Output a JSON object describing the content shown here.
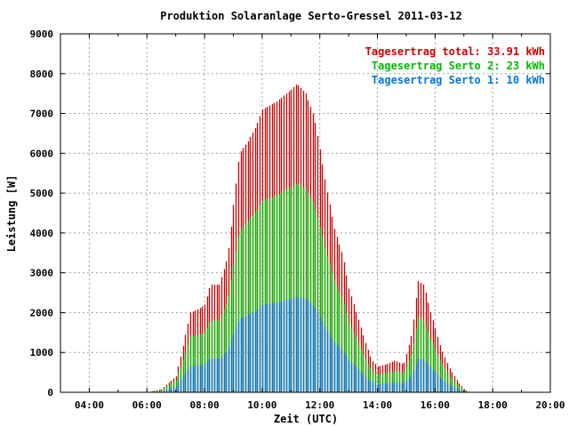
{
  "chart_data": {
    "type": "bar",
    "title": "Produktion Solaranlage Serto-Gressel 2011-03-12",
    "xlabel": "Zeit (UTC)",
    "ylabel": "Leistung [W]",
    "xlim": [
      3.0,
      20.0
    ],
    "ylim": [
      0,
      9000
    ],
    "x_ticks": [
      4,
      6,
      8,
      10,
      12,
      14,
      16,
      18,
      20
    ],
    "x_tick_labels": [
      "04:00",
      "06:00",
      "08:00",
      "10:00",
      "12:00",
      "14:00",
      "16:00",
      "18:00",
      "20:00"
    ],
    "y_ticks": [
      0,
      1000,
      2000,
      3000,
      4000,
      5000,
      6000,
      7000,
      8000,
      9000
    ],
    "y_tick_labels": [
      "0",
      "1000",
      "2000",
      "3000",
      "4000",
      "5000",
      "6000",
      "7000",
      "8000",
      "9000"
    ],
    "grid": true,
    "legend_position": "top-right",
    "interval_minutes": 5,
    "legend": [
      {
        "label": "Tagesertrag total: 33.91 kWh",
        "color": "#cc0000"
      },
      {
        "label": "Tagesertrag Serto 2: 23 kWh",
        "color": "#00bb00"
      },
      {
        "label": "Tagesertrag Serto 1: 10 kWh",
        "color": "#0077dd"
      }
    ],
    "series": [
      {
        "name": "Tagesertrag total: 33.91 kWh",
        "color": "#cc0000",
        "points": [
          [
            6.0,
            0
          ],
          [
            6.5,
            80
          ],
          [
            7.0,
            400
          ],
          [
            7.2,
            1000
          ],
          [
            7.5,
            2000
          ],
          [
            7.8,
            2100
          ],
          [
            8.0,
            2200
          ],
          [
            8.2,
            2700
          ],
          [
            8.5,
            2700
          ],
          [
            8.8,
            3400
          ],
          [
            9.0,
            4700
          ],
          [
            9.2,
            6000
          ],
          [
            9.5,
            6300
          ],
          [
            9.8,
            6700
          ],
          [
            10.0,
            7100
          ],
          [
            10.5,
            7300
          ],
          [
            11.0,
            7600
          ],
          [
            11.2,
            7750
          ],
          [
            11.5,
            7500
          ],
          [
            11.8,
            6900
          ],
          [
            12.0,
            6100
          ],
          [
            12.2,
            5200
          ],
          [
            12.5,
            4100
          ],
          [
            12.8,
            3400
          ],
          [
            13.0,
            2600
          ],
          [
            13.3,
            1900
          ],
          [
            13.6,
            1200
          ],
          [
            13.8,
            800
          ],
          [
            14.0,
            650
          ],
          [
            14.3,
            700
          ],
          [
            14.6,
            800
          ],
          [
            14.9,
            700
          ],
          [
            15.2,
            1500
          ],
          [
            15.4,
            2800
          ],
          [
            15.6,
            2700
          ],
          [
            15.8,
            2100
          ],
          [
            16.0,
            1600
          ],
          [
            16.2,
            1100
          ],
          [
            16.5,
            600
          ],
          [
            16.8,
            250
          ],
          [
            17.0,
            80
          ],
          [
            17.2,
            0
          ]
        ]
      },
      {
        "name": "Tagesertrag Serto 2: 23 kWh",
        "color": "#00bb00",
        "points": [
          [
            6.0,
            0
          ],
          [
            6.5,
            60
          ],
          [
            7.0,
            300
          ],
          [
            7.2,
            700
          ],
          [
            7.5,
            1400
          ],
          [
            7.8,
            1450
          ],
          [
            8.0,
            1500
          ],
          [
            8.2,
            1800
          ],
          [
            8.5,
            1800
          ],
          [
            8.8,
            2300
          ],
          [
            9.0,
            3200
          ],
          [
            9.2,
            4050
          ],
          [
            9.5,
            4300
          ],
          [
            9.8,
            4550
          ],
          [
            10.0,
            4800
          ],
          [
            10.5,
            4950
          ],
          [
            11.0,
            5150
          ],
          [
            11.2,
            5250
          ],
          [
            11.5,
            5100
          ],
          [
            11.8,
            4700
          ],
          [
            12.0,
            4150
          ],
          [
            12.2,
            3550
          ],
          [
            12.5,
            2800
          ],
          [
            12.8,
            2300
          ],
          [
            13.0,
            1750
          ],
          [
            13.3,
            1300
          ],
          [
            13.6,
            800
          ],
          [
            13.8,
            540
          ],
          [
            14.0,
            440
          ],
          [
            14.3,
            480
          ],
          [
            14.6,
            540
          ],
          [
            14.9,
            480
          ],
          [
            15.2,
            1000
          ],
          [
            15.4,
            1900
          ],
          [
            15.6,
            1800
          ],
          [
            15.8,
            1400
          ],
          [
            16.0,
            1100
          ],
          [
            16.2,
            750
          ],
          [
            16.5,
            400
          ],
          [
            16.8,
            170
          ],
          [
            17.0,
            55
          ],
          [
            17.2,
            0
          ]
        ]
      },
      {
        "name": "Tagesertrag Serto 1: 10 kWh",
        "color": "#0077dd",
        "points": [
          [
            6.0,
            0
          ],
          [
            6.5,
            30
          ],
          [
            7.0,
            150
          ],
          [
            7.2,
            350
          ],
          [
            7.5,
            650
          ],
          [
            7.8,
            680
          ],
          [
            8.0,
            700
          ],
          [
            8.2,
            850
          ],
          [
            8.5,
            850
          ],
          [
            8.8,
            1050
          ],
          [
            9.0,
            1450
          ],
          [
            9.2,
            1850
          ],
          [
            9.5,
            1950
          ],
          [
            9.8,
            2050
          ],
          [
            10.0,
            2200
          ],
          [
            10.5,
            2250
          ],
          [
            11.0,
            2350
          ],
          [
            11.2,
            2400
          ],
          [
            11.5,
            2350
          ],
          [
            11.8,
            2150
          ],
          [
            12.0,
            1900
          ],
          [
            12.2,
            1600
          ],
          [
            12.5,
            1250
          ],
          [
            12.8,
            1050
          ],
          [
            13.0,
            800
          ],
          [
            13.3,
            600
          ],
          [
            13.6,
            370
          ],
          [
            13.8,
            250
          ],
          [
            14.0,
            200
          ],
          [
            14.3,
            220
          ],
          [
            14.6,
            250
          ],
          [
            14.9,
            220
          ],
          [
            15.2,
            450
          ],
          [
            15.4,
            850
          ],
          [
            15.6,
            820
          ],
          [
            15.8,
            650
          ],
          [
            16.0,
            500
          ],
          [
            16.2,
            340
          ],
          [
            16.5,
            180
          ],
          [
            16.8,
            80
          ],
          [
            17.0,
            25
          ],
          [
            17.2,
            0
          ]
        ]
      }
    ]
  }
}
